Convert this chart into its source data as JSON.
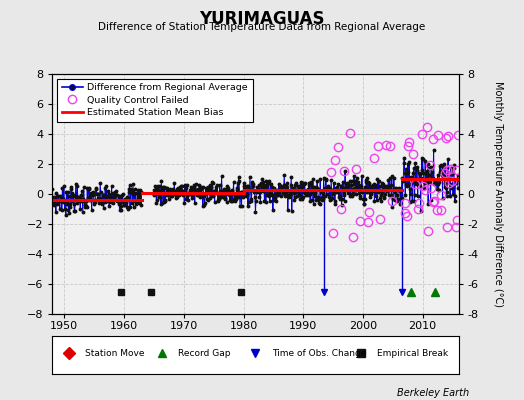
{
  "title": "YURIMAGUAS",
  "subtitle": "Difference of Station Temperature Data from Regional Average",
  "ylabel_right": "Monthly Temperature Anomaly Difference (°C)",
  "xlim": [
    1948,
    2016
  ],
  "ylim": [
    -8,
    8
  ],
  "yticks": [
    -8,
    -6,
    -4,
    -2,
    0,
    2,
    4,
    6,
    8
  ],
  "xticks": [
    1950,
    1960,
    1970,
    1980,
    1990,
    2000,
    2010
  ],
  "bg_color": "#e8e8e8",
  "plot_bg_color": "#f0f0f0",
  "grid_color": "#c8c8c8",
  "watermark": "Berkeley Earth",
  "main_line_color": "#0000dd",
  "main_dot_color": "#111111",
  "qc_fail_color": "#ee44ee",
  "bias_line_color": "#ff0000",
  "obs_change_color": "#0000cc",
  "record_gap_color": "#007700",
  "empirical_break_color": "#111111",
  "station_move_color": "#dd0000",
  "empirical_breaks": [
    1959.5,
    1964.5,
    1979.5
  ],
  "record_gaps": [
    2008.0,
    2012.0
  ],
  "obs_changes": [
    1993.5,
    2006.5
  ],
  "segment_biases": [
    {
      "x_start": 1948,
      "x_end": 1963,
      "bias": -0.4
    },
    {
      "x_start": 1963,
      "x_end": 1980,
      "bias": 0.1
    },
    {
      "x_start": 1980,
      "x_end": 2006.5,
      "bias": 0.25
    },
    {
      "x_start": 2006.5,
      "x_end": 2016,
      "bias": 1.0
    }
  ]
}
